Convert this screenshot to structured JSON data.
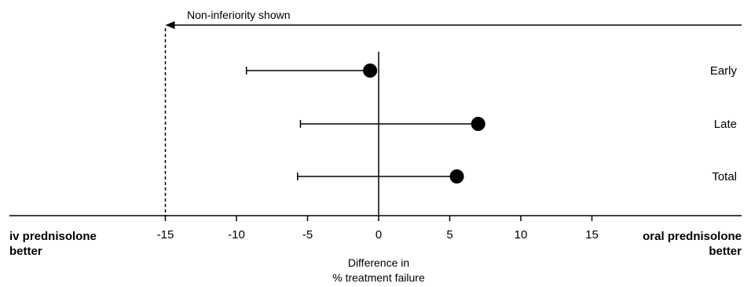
{
  "chart_data": {
    "type": "forest",
    "title": "",
    "xlabel_line1": "Difference in",
    "xlabel_line2": "% treatment failure",
    "xlim": [
      -26,
      26
    ],
    "xticks": [
      -15,
      -10,
      -5,
      0,
      5,
      10,
      15
    ],
    "tick_labels": [
      "-15",
      "-10",
      "-5",
      "0",
      "5",
      "10",
      "15"
    ],
    "reference_line": 0,
    "margin_line": -15,
    "margin_annotation": "Non-inferiority shown",
    "left_label_line1": "iv prednisolone",
    "left_label_line2": "better",
    "right_label_line1": "oral prednisolone",
    "right_label_line2": "better",
    "series": [
      {
        "label": "Early",
        "estimate": -0.6,
        "ci_low": -9.3,
        "ci_high": -0.6
      },
      {
        "label": "Late",
        "estimate": 7.0,
        "ci_low": -5.5,
        "ci_high": 7.0
      },
      {
        "label": "Total",
        "estimate": 5.5,
        "ci_low": -5.7,
        "ci_high": 5.5
      }
    ],
    "grid": false,
    "colors": {
      "ink": "#000000",
      "background": "#ffffff"
    }
  }
}
